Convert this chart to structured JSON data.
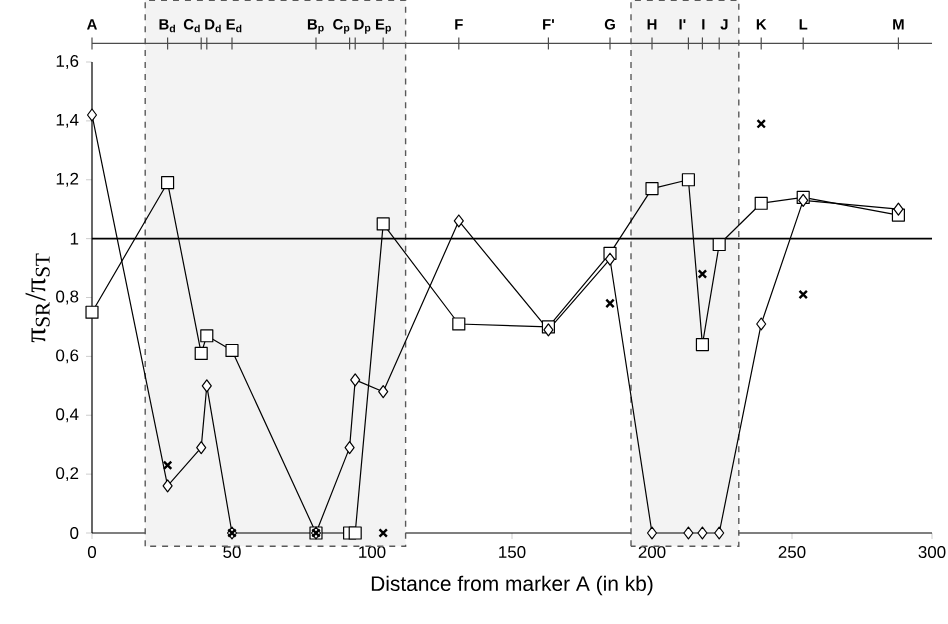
{
  "chart_data": {
    "type": "line",
    "xlabel": "Distance from marker A (in kb)",
    "ylabel": "π$_{SR}$/π$_{ST}$",
    "xlim": [
      0,
      300
    ],
    "xticks": [
      0,
      50,
      100,
      150,
      200,
      250,
      300
    ],
    "ylim": [
      0,
      1.6
    ],
    "yticks": [
      0,
      {
        "value": 0.2,
        "label": "0,2"
      },
      {
        "value": 0.4,
        "label": "0,4"
      },
      {
        "value": 0.6,
        "label": "0,6"
      },
      {
        "value": 0.8,
        "label": "0,8"
      },
      1,
      {
        "value": 1.2,
        "label": "1,2"
      },
      {
        "value": 1.4,
        "label": "1,4"
      },
      {
        "value": 1.6,
        "label": "1,6"
      }
    ],
    "annotations": [
      "A",
      "B$_{d}$",
      "C$_{d}$",
      "D$_{d}$",
      "E$_{d}$",
      "B$_{p}$",
      "C$_{p}$",
      "D$_{p}$",
      "E$_{p}$",
      "F",
      "F'",
      "G",
      "H",
      "I'",
      "I",
      "J",
      "K",
      "L",
      "M"
    ],
    "series": [
      {
        "marker": "square",
        "color": "#000000",
        "x": [
          0,
          27,
          39,
          41,
          50,
          80,
          92,
          94,
          104,
          131,
          163,
          185,
          200,
          213,
          218,
          224,
          239,
          254,
          288
        ],
        "values": [
          0.75,
          1.19,
          0.61,
          0.67,
          0.62,
          0,
          0,
          0,
          1.05,
          0.71,
          0.7,
          0.95,
          1.17,
          1.2,
          0.64,
          0.98,
          1.12,
          1.14,
          1.08
        ]
      },
      {
        "marker": "diamond",
        "color": "#000000",
        "x": [
          0,
          27,
          39,
          41,
          50,
          80,
          92,
          94,
          104,
          131,
          163,
          185,
          200,
          213,
          218,
          224,
          239,
          254,
          288
        ],
        "values": [
          1.42,
          0.16,
          0.29,
          0.5,
          0,
          0,
          0.29,
          0.52,
          0.48,
          1.06,
          0.69,
          0.93,
          0,
          0,
          0,
          0,
          0.71,
          1.13,
          1.1
        ]
      },
      {
        "type": "scatter",
        "marker": "cross",
        "color": "#000000",
        "x": [
          27,
          50,
          80,
          104,
          185,
          218,
          239,
          254
        ],
        "values": [
          0.23,
          0,
          0,
          0,
          0.78,
          0.88,
          1.39,
          0.81
        ]
      }
    ],
    "ref_lines": [
      {
        "axis": "y",
        "value": 1,
        "color": "#000000"
      }
    ],
    "bands": [
      {
        "axis": "x",
        "from": 19,
        "to": 112,
        "color": "#f3f3f3"
      },
      {
        "axis": "x",
        "from": 192.5,
        "to": 231,
        "color": "#f3f3f3"
      }
    ]
  }
}
